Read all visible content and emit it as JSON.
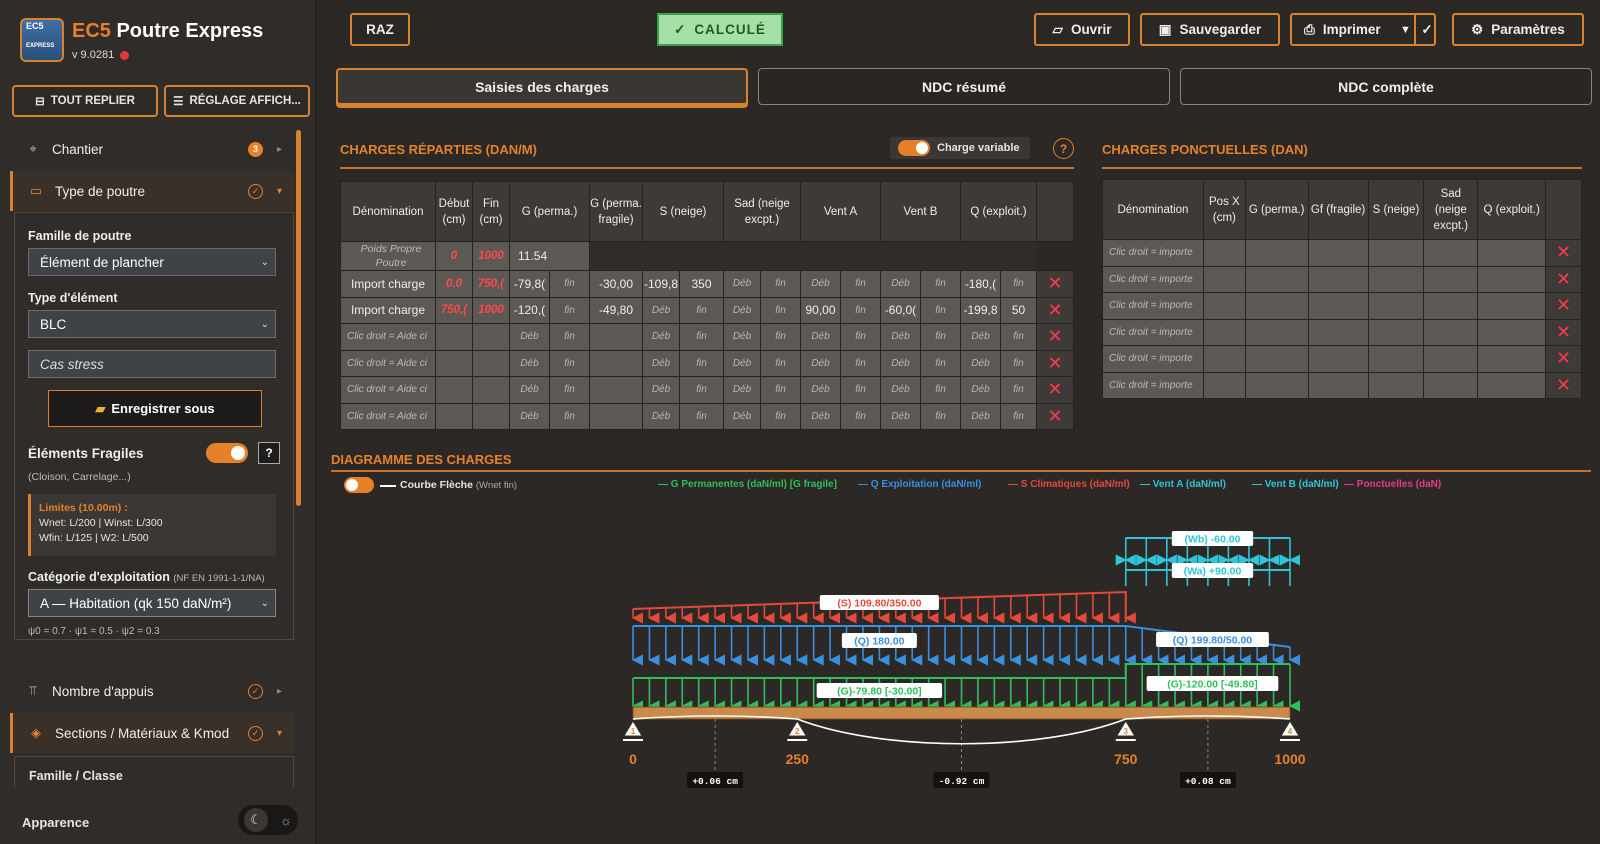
{
  "app": {
    "logo_text": "EC5",
    "logo_sub": "EXPRESS",
    "title_ec5": "EC5",
    "title_rest": "Poutre Express",
    "version": "v 9.0281"
  },
  "sidebar": {
    "collapse_all": "TOUT REPLIER",
    "display_settings": "RÉGLAGE AFFICH...",
    "nav": [
      {
        "label": "Chantier",
        "badge": "3"
      },
      {
        "label": "Type de poutre"
      },
      {
        "label": "Nombre d'appuis"
      },
      {
        "label": "Sections / Matériaux & Kmod"
      }
    ],
    "famille_label": "Famille de poutre",
    "famille_value": "Élément de plancher",
    "type_label": "Type d'élément",
    "type_value": "BLC",
    "cas_placeholder": "Cas stress",
    "save_as": "Enregistrer sous",
    "fragiles_label": "Éléments Fragiles",
    "fragiles_note": "(Cloison, Carrelage...)",
    "limits_title": "Limites (10.00m) :",
    "limits_line1": "Wnet: L/200 | Winst: L/300",
    "limits_line2": "Wfin: L/125 | W2: L/500",
    "categorie_label": "Catégorie d'exploitation",
    "categorie_ref": "(NF EN 1991-1-1/NA)",
    "categorie_value": "A — Habitation (qk 150 daN/m²)",
    "psi": "ψ0 = 0.7 · ψ1 = 0.5 · ψ2 = 0.3",
    "famille_classe": "Famille / Classe",
    "appearance": "Apparence"
  },
  "toolbar": {
    "raz": "RAZ",
    "calcule": "CALCULÉ",
    "ouvrir": "Ouvrir",
    "sauvegarder": "Sauvegarder",
    "imprimer": "Imprimer",
    "parametres": "Paramètres"
  },
  "tabs": [
    "Saisies des charges",
    "NDC résumé",
    "NDC complète"
  ],
  "reparties": {
    "title": "CHARGES RÉPARTIES (DAN/M)",
    "variable_label": "Charge variable",
    "headers": [
      "Dénomination",
      "Début (cm)",
      "Fin (cm)",
      "G (perma.)",
      "G (perma. fragile)",
      "S (neige)",
      "Sad (neige excpt.)",
      "Vent A",
      "Vent B",
      "Q (exploit.)"
    ],
    "pp": {
      "name": "Poids Propre Poutre",
      "debut": "0",
      "fin": "1000",
      "g": "11.54"
    },
    "rows": [
      {
        "name": "Import charge",
        "debut": "0,0",
        "fin": "750,(",
        "cells": [
          "-79,8(",
          "fin",
          "-30,00",
          "-109,8",
          "350",
          "Déb",
          "fin",
          "Déb",
          "fin",
          "Déb",
          "fin",
          "-180,(",
          "fin"
        ]
      },
      {
        "name": "Import charge",
        "debut": "750,(",
        "fin": "1000",
        "cells": [
          "-120,(",
          "fin",
          "-49,80",
          "Déb",
          "fin",
          "Déb",
          "fin",
          "90,00",
          "fin",
          "-60,0(",
          "fin",
          "-199,8",
          "50"
        ]
      },
      {
        "name": "Clic droit = Aide ci",
        "debut": "",
        "fin": "",
        "cells": [
          "Déb",
          "fin",
          "",
          "Déb",
          "fin",
          "Déb",
          "fin",
          "Déb",
          "fin",
          "Déb",
          "fin",
          "Déb",
          "fin"
        ]
      },
      {
        "name": "Clic droit = Aide ci",
        "debut": "",
        "fin": "",
        "cells": [
          "Déb",
          "fin",
          "",
          "Déb",
          "fin",
          "Déb",
          "fin",
          "Déb",
          "fin",
          "Déb",
          "fin",
          "Déb",
          "fin"
        ]
      },
      {
        "name": "Clic droit = Aide ci",
        "debut": "",
        "fin": "",
        "cells": [
          "Déb",
          "fin",
          "",
          "Déb",
          "fin",
          "Déb",
          "fin",
          "Déb",
          "fin",
          "Déb",
          "fin",
          "Déb",
          "fin"
        ]
      },
      {
        "name": "Clic droit = Aide ci",
        "debut": "",
        "fin": "",
        "cells": [
          "Déb",
          "fin",
          "",
          "Déb",
          "fin",
          "Déb",
          "fin",
          "Déb",
          "fin",
          "Déb",
          "fin",
          "Déb",
          "fin"
        ]
      }
    ]
  },
  "ponctuelles": {
    "title": "CHARGES PONCTUELLES (DAN)",
    "headers": [
      "Dénomination",
      "Pos X (cm)",
      "G (perma.)",
      "Gf (fragile)",
      "S (neige)",
      "Sad (neige excpt.)",
      "Q (exploit.)"
    ],
    "rows": [
      "Clic droit = importe",
      "Clic droit = importe",
      "Clic droit = importe",
      "Clic droit = importe",
      "Clic droit = importe",
      "Clic droit = importe"
    ]
  },
  "diagramme": {
    "title": "DIAGRAMME DES CHARGES",
    "courbe_label": "Courbe Flèche",
    "courbe_note": "(Wnet fin)",
    "legend": [
      {
        "label": "G Permanentes (daN/ml) [G fragile]",
        "color": "#2fbf5a"
      },
      {
        "label": "Q Exploitation (daN/ml)",
        "color": "#3a8fe0"
      },
      {
        "label": "S Climatiques (daN/ml)",
        "color": "#e6483a"
      },
      {
        "label": "Vent A (daN/ml)",
        "color": "#2ec5d8"
      },
      {
        "label": "Vent B (daN/ml)",
        "color": "#2ec5d8"
      },
      {
        "label": "Ponctuelles (daN)",
        "color": "#e63a8a"
      }
    ],
    "load_labels": {
      "wb": "(Wb) -60.00",
      "wa": "(Wa) +90.00",
      "s": "(S) 109.80/350.00",
      "q1": "(Q) 180.00",
      "q2": "(Q) 199.80/50.00",
      "g1": "(G)-79.80 [-30.00]",
      "g2": "(G)-120.00 [-49.80]"
    },
    "supports": [
      {
        "x": "0",
        "n": "1"
      },
      {
        "x": "250",
        "n": "2"
      },
      {
        "x": "750",
        "n": "3"
      },
      {
        "x": "1000",
        "n": "4"
      }
    ],
    "deflections": [
      "+0.06 cm",
      "-0.92 cm",
      "+0.08 cm"
    ]
  }
}
